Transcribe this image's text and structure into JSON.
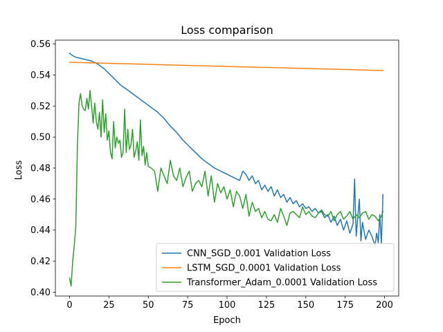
{
  "chart_data": {
    "type": "line",
    "title": "Loss comparison",
    "xlabel": "Epoch",
    "ylabel": "Loss",
    "xlim": [
      -9,
      209
    ],
    "ylim": [
      0.3975,
      0.5625
    ],
    "xticks": [
      0,
      25,
      50,
      75,
      100,
      125,
      150,
      175,
      200
    ],
    "yticks": [
      0.4,
      0.42,
      0.44,
      0.46,
      0.48,
      0.5,
      0.52,
      0.54,
      0.56
    ],
    "ytick_labels": [
      "0.40",
      "0.42",
      "0.44",
      "0.46",
      "0.48",
      "0.50",
      "0.52",
      "0.54",
      "0.56"
    ],
    "grid": false,
    "legend_position": "lower-right",
    "series": [
      {
        "name": "CNN_SGD_0.001 Validation Loss",
        "color": "#1f77b4",
        "x": [
          0,
          2,
          4,
          6,
          8,
          10,
          12,
          14,
          16,
          18,
          20,
          22,
          25,
          28,
          30,
          33,
          36,
          40,
          44,
          48,
          52,
          56,
          60,
          64,
          68,
          72,
          76,
          80,
          84,
          88,
          92,
          96,
          100,
          104,
          108,
          110,
          112,
          114,
          116,
          118,
          120,
          122,
          124,
          126,
          128,
          130,
          132,
          134,
          136,
          138,
          140,
          142,
          144,
          146,
          148,
          150,
          152,
          154,
          156,
          158,
          160,
          162,
          164,
          166,
          168,
          170,
          172,
          174,
          176,
          178,
          180,
          181,
          182,
          184,
          185,
          186,
          188,
          190,
          192,
          194,
          195,
          196,
          197,
          198,
          199
        ],
        "y": [
          0.554,
          0.5525,
          0.5515,
          0.551,
          0.5505,
          0.55,
          0.5495,
          0.549,
          0.548,
          0.547,
          0.5455,
          0.544,
          0.541,
          0.538,
          0.536,
          0.533,
          0.531,
          0.528,
          0.525,
          0.522,
          0.519,
          0.516,
          0.512,
          0.507,
          0.503,
          0.498,
          0.494,
          0.49,
          0.486,
          0.483,
          0.48,
          0.478,
          0.476,
          0.474,
          0.472,
          0.478,
          0.476,
          0.472,
          0.475,
          0.47,
          0.472,
          0.466,
          0.469,
          0.465,
          0.468,
          0.462,
          0.466,
          0.461,
          0.463,
          0.458,
          0.461,
          0.457,
          0.459,
          0.455,
          0.457,
          0.454,
          0.455,
          0.452,
          0.454,
          0.451,
          0.452,
          0.448,
          0.45,
          0.445,
          0.449,
          0.443,
          0.447,
          0.44,
          0.446,
          0.438,
          0.444,
          0.473,
          0.436,
          0.46,
          0.433,
          0.445,
          0.434,
          0.44,
          0.436,
          0.43,
          0.438,
          0.432,
          0.45,
          0.431,
          0.463
        ]
      },
      {
        "name": "LSTM_SGD_0.0001 Validation Loss",
        "color": "#ff7f0e",
        "x": [
          0,
          199
        ],
        "y": [
          0.5482,
          0.5429
        ]
      },
      {
        "name": "Transformer_Adam_0.0001 Validation Loss",
        "color": "#2ca02c",
        "x": [
          0,
          1,
          2,
          3,
          4,
          5,
          6,
          7,
          8,
          9,
          10,
          11,
          12,
          13,
          14,
          15,
          16,
          17,
          18,
          19,
          20,
          21,
          22,
          23,
          24,
          25,
          26,
          27,
          28,
          29,
          30,
          31,
          32,
          33,
          34,
          35,
          36,
          37,
          38,
          39,
          40,
          41,
          42,
          43,
          44,
          45,
          46,
          47,
          48,
          49,
          50,
          52,
          54,
          56,
          58,
          60,
          62,
          64,
          66,
          68,
          70,
          72,
          74,
          76,
          78,
          80,
          82,
          84,
          86,
          88,
          90,
          92,
          94,
          96,
          98,
          100,
          102,
          104,
          106,
          108,
          110,
          112,
          114,
          116,
          118,
          120,
          122,
          124,
          126,
          128,
          130,
          132,
          134,
          136,
          138,
          140,
          142,
          144,
          146,
          148,
          150,
          152,
          154,
          156,
          158,
          160,
          162,
          164,
          166,
          168,
          170,
          172,
          174,
          176,
          178,
          180,
          182,
          184,
          186,
          188,
          190,
          192,
          194,
          196,
          198,
          199
        ],
        "y": [
          0.409,
          0.404,
          0.42,
          0.43,
          0.443,
          0.495,
          0.522,
          0.528,
          0.52,
          0.518,
          0.517,
          0.525,
          0.518,
          0.53,
          0.52,
          0.509,
          0.522,
          0.51,
          0.505,
          0.516,
          0.5,
          0.524,
          0.503,
          0.515,
          0.498,
          0.504,
          0.49,
          0.486,
          0.51,
          0.493,
          0.5,
          0.496,
          0.498,
          0.487,
          0.49,
          0.518,
          0.49,
          0.505,
          0.492,
          0.495,
          0.505,
          0.487,
          0.491,
          0.497,
          0.485,
          0.511,
          0.488,
          0.494,
          0.482,
          0.49,
          0.481,
          0.48,
          0.478,
          0.465,
          0.48,
          0.475,
          0.47,
          0.485,
          0.475,
          0.472,
          0.48,
          0.468,
          0.474,
          0.478,
          0.465,
          0.47,
          0.472,
          0.468,
          0.478,
          0.462,
          0.475,
          0.458,
          0.47,
          0.464,
          0.468,
          0.46,
          0.466,
          0.455,
          0.465,
          0.462,
          0.454,
          0.463,
          0.449,
          0.458,
          0.452,
          0.454,
          0.448,
          0.452,
          0.447,
          0.446,
          0.45,
          0.445,
          0.454,
          0.449,
          0.443,
          0.451,
          0.452,
          0.45,
          0.448,
          0.455,
          0.45,
          0.452,
          0.449,
          0.448,
          0.451,
          0.453,
          0.45,
          0.449,
          0.452,
          0.446,
          0.45,
          0.452,
          0.447,
          0.449,
          0.452,
          0.447,
          0.45,
          0.448,
          0.451,
          0.452,
          0.447,
          0.45,
          0.449,
          0.446,
          0.449,
          0.452
        ]
      }
    ]
  }
}
